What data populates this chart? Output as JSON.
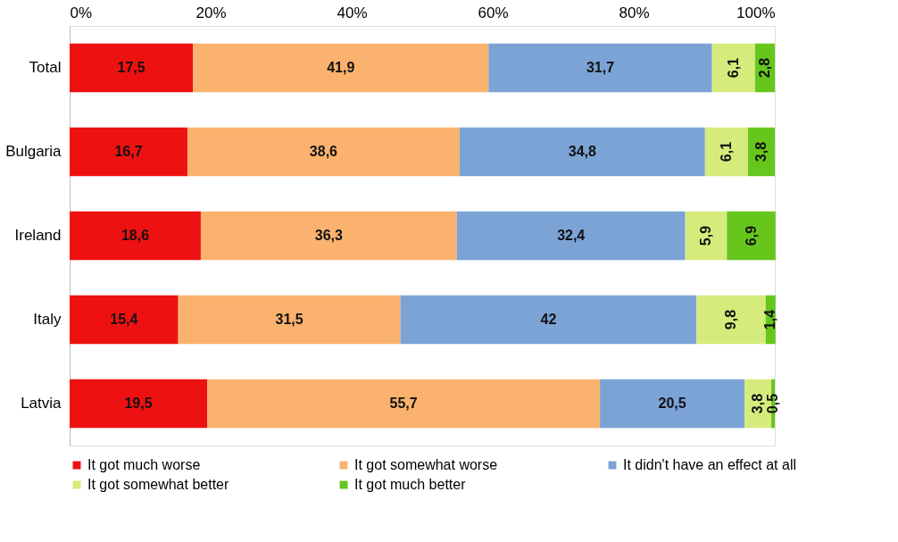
{
  "chart_data": {
    "type": "bar",
    "orientation": "horizontal",
    "stacked": true,
    "categories": [
      "Total",
      "Bulgaria",
      "Ireland",
      "Italy",
      "Latvia"
    ],
    "series": [
      {
        "name": "It got much worse",
        "color": "#ee1111",
        "values": [
          17.5,
          16.7,
          18.6,
          15.4,
          19.5
        ],
        "value_labels": [
          "17,5",
          "16,7",
          "18,6",
          "15,4",
          "19,5"
        ]
      },
      {
        "name": "It got somewhat worse",
        "color": "#fab26e",
        "values": [
          41.9,
          38.6,
          36.3,
          31.5,
          55.7
        ],
        "value_labels": [
          "41,9",
          "38,6",
          "36,3",
          "31,5",
          "55,7"
        ]
      },
      {
        "name": "It didn't have an effect at all",
        "color": "#7ba3d6",
        "values": [
          31.7,
          34.8,
          32.4,
          42,
          20.5
        ],
        "value_labels": [
          "31,7",
          "34,8",
          "32,4",
          "42",
          "20,5"
        ]
      },
      {
        "name": "It got somewhat better",
        "color": "#d5ec7c",
        "values": [
          6.1,
          6.1,
          5.9,
          9.8,
          3.8
        ],
        "value_labels": [
          "6,1",
          "6,1",
          "5,9",
          "9,8",
          "3,8"
        ]
      },
      {
        "name": "It got much better",
        "color": "#66c61c",
        "values": [
          2.8,
          3.8,
          6.9,
          1.4,
          0.5
        ],
        "value_labels": [
          "2,8",
          "3,8",
          "6,9",
          "1,4",
          "0,5"
        ]
      }
    ],
    "xlim": [
      0,
      100
    ],
    "xticks": [
      {
        "value": 0,
        "label": "0%"
      },
      {
        "value": 20,
        "label": "20%"
      },
      {
        "value": 40,
        "label": "40%"
      },
      {
        "value": 60,
        "label": "60%"
      },
      {
        "value": 80,
        "label": "80%"
      },
      {
        "value": 100,
        "label": "100%"
      }
    ],
    "grid": false,
    "legend": "bottom"
  }
}
